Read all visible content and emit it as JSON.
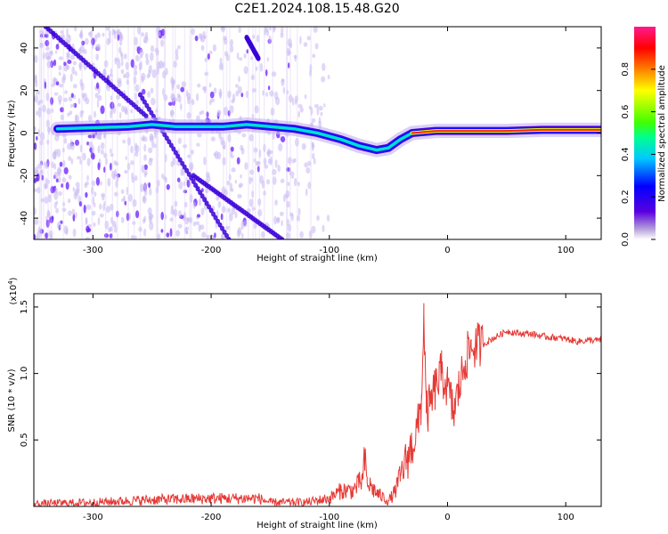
{
  "figure": {
    "title": "C2E1.2024.108.15.48.G20"
  },
  "colors": {
    "snr_line": "#e53935",
    "axis": "#000000",
    "background": "#ffffff"
  },
  "chart_data": [
    {
      "id": "spectrogram",
      "type": "heatmap",
      "title": "C2E1.2024.108.15.48.G20",
      "xlabel": "Height of straight line (km)",
      "ylabel": "Frequency (Hz)",
      "xlim": [
        -350,
        130
      ],
      "ylim": [
        -50,
        50
      ],
      "xticks": [
        -300,
        -200,
        -100,
        0,
        100
      ],
      "yticks": [
        -40,
        -20,
        0,
        20,
        40
      ],
      "colorbar": {
        "label": "Normalized spectral amplitude",
        "range": [
          0,
          1
        ],
        "ticks": [
          "0.0",
          "0.2",
          "0.4",
          "0.6",
          "0.8"
        ],
        "ticks_values": [
          0,
          0.2,
          0.4,
          0.6,
          0.8
        ],
        "colormap": [
          "#ffffff",
          "#b39ddb",
          "#5a00e0",
          "#0000ff",
          "#00c8ff",
          "#00ff90",
          "#40ff00",
          "#ffff00",
          "#ff8000",
          "#ff0000",
          "#ff1a8c"
        ]
      },
      "features": {
        "main_trace": [
          [
            -330,
            2
          ],
          [
            -300,
            2.5
          ],
          [
            -270,
            3
          ],
          [
            -250,
            4
          ],
          [
            -230,
            3
          ],
          [
            -210,
            3
          ],
          [
            -190,
            3
          ],
          [
            -170,
            4
          ],
          [
            -150,
            3
          ],
          [
            -130,
            2
          ],
          [
            -110,
            0
          ],
          [
            -90,
            -3
          ],
          [
            -75,
            -6
          ],
          [
            -60,
            -8
          ],
          [
            -50,
            -7
          ],
          [
            -40,
            -3
          ],
          [
            -30,
            0
          ],
          [
            -10,
            1
          ],
          [
            0,
            1
          ],
          [
            20,
            1
          ],
          [
            50,
            1
          ],
          [
            80,
            1.5
          ],
          [
            100,
            1.5
          ],
          [
            130,
            1.5
          ]
        ],
        "diagonal_traces": [
          {
            "from": [
              -340,
              50
            ],
            "to": [
              -255,
              8
            ]
          },
          {
            "from": [
              -260,
              18
            ],
            "to": [
              -185,
              -50
            ]
          },
          {
            "from": [
              -215,
              -20
            ],
            "to": [
              -140,
              -50
            ]
          },
          {
            "from": [
              -170,
              45
            ],
            "to": [
              -160,
              35
            ]
          }
        ],
        "noise_extent_x": [
          -350,
          -100
        ]
      }
    },
    {
      "id": "snr",
      "type": "line",
      "xlabel": "Height of straight line (km)",
      "ylabel": "SNR (10 * v/v)",
      "y_multiplier_label": "(x10",
      "y_multiplier_exp": "4",
      "y_multiplier_close": ")",
      "xlim": [
        -350,
        130
      ],
      "ylim": [
        0,
        1.6
      ],
      "xticks": [
        -300,
        -200,
        -100,
        0,
        100
      ],
      "yticks": [
        "0.5",
        "1.0",
        "1.5"
      ],
      "yticks_values": [
        0.5,
        1.0,
        1.5
      ],
      "series": [
        {
          "color": "#e53935",
          "x": [
            -350,
            -300,
            -250,
            -200,
            -160,
            -150,
            -120,
            -100,
            -90,
            -80,
            -72,
            -70,
            -68,
            -60,
            -50,
            -45,
            -40,
            -35,
            -30,
            -25,
            -22,
            -20,
            -18,
            -15,
            -10,
            -5,
            0,
            5,
            10,
            15,
            20,
            30,
            40,
            50,
            60,
            70,
            80,
            90,
            100,
            110,
            120,
            130
          ],
          "y": [
            0.02,
            0.03,
            0.05,
            0.06,
            0.06,
            0.03,
            0.03,
            0.06,
            0.12,
            0.12,
            0.2,
            0.35,
            0.18,
            0.1,
            0.04,
            0.1,
            0.22,
            0.35,
            0.45,
            0.6,
            0.8,
            1.45,
            0.7,
            0.75,
            0.9,
            1.0,
            0.9,
            0.7,
            0.9,
            1.1,
            1.2,
            1.22,
            1.27,
            1.32,
            1.3,
            1.3,
            1.28,
            1.27,
            1.26,
            1.24,
            1.25,
            1.25
          ]
        }
      ]
    }
  ]
}
